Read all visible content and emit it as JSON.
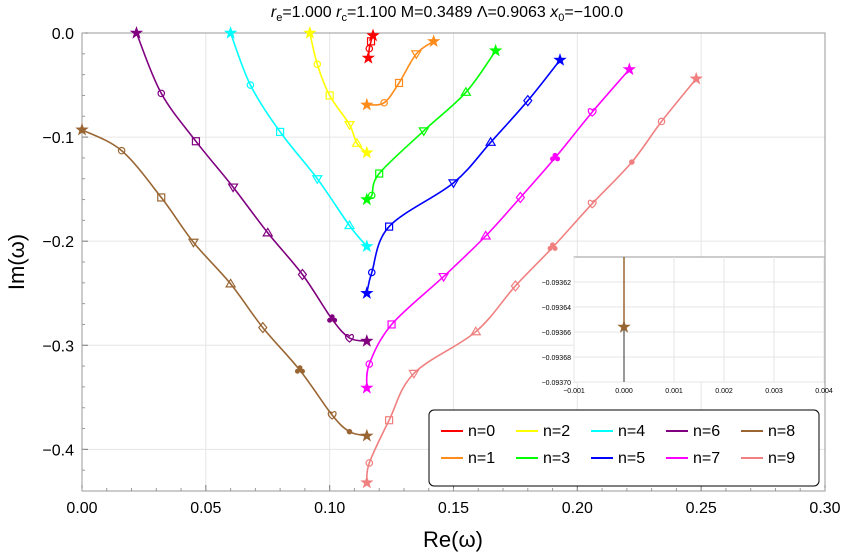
{
  "chart_data": {
    "type": "line",
    "title": "r_e=1.000  r_c=1.100  M=0.3489  Λ=0.9063  x₀=−100.0",
    "title_parts": {
      "re": "=1.000 ",
      "rc": "=1.100 M=0.3489 Λ=0.9063 ",
      "x0": "=−100.0"
    },
    "xlabel": "Re(ω)",
    "ylabel": "Im(ω)",
    "xlim": [
      0.0,
      0.3
    ],
    "ylim": [
      -0.44,
      0.0
    ],
    "xticks": [
      "0.00",
      "0.05",
      "0.10",
      "0.15",
      "0.20",
      "0.25",
      "0.30"
    ],
    "yticks": [
      "0.0",
      "−0.1",
      "−0.2",
      "−0.3",
      "−0.4"
    ],
    "grid": true,
    "legend_position": "bottom-right",
    "series": [
      {
        "name": "n=0",
        "color": "#ff0000",
        "points": [
          [
            0.1156,
            -0.024
          ],
          [
            0.116,
            -0.015
          ],
          [
            0.1167,
            -0.008
          ],
          [
            0.1175,
            -0.0025
          ]
        ]
      },
      {
        "name": "n=1",
        "color": "#ff8c1a",
        "points": [
          [
            0.115,
            -0.069
          ],
          [
            0.122,
            -0.067
          ],
          [
            0.128,
            -0.048
          ],
          [
            0.135,
            -0.02
          ],
          [
            0.142,
            -0.008
          ]
        ]
      },
      {
        "name": "n=2",
        "color": "#ffff00",
        "points": [
          [
            0.092,
            0.0
          ],
          [
            0.095,
            -0.03
          ],
          [
            0.1,
            -0.06
          ],
          [
            0.108,
            -0.088
          ],
          [
            0.111,
            -0.106
          ],
          [
            0.115,
            -0.115
          ]
        ]
      },
      {
        "name": "n=3",
        "color": "#00ff00",
        "points": [
          [
            0.115,
            -0.16
          ],
          [
            0.117,
            -0.156
          ],
          [
            0.12,
            -0.135
          ],
          [
            0.138,
            -0.094
          ],
          [
            0.155,
            -0.057
          ],
          [
            0.167,
            -0.017
          ]
        ]
      },
      {
        "name": "n=4",
        "color": "#00ffff",
        "points": [
          [
            0.06,
            0.0
          ],
          [
            0.068,
            -0.05
          ],
          [
            0.08,
            -0.095
          ],
          [
            0.095,
            -0.14
          ],
          [
            0.108,
            -0.185
          ],
          [
            0.115,
            -0.205
          ]
        ]
      },
      {
        "name": "n=5",
        "color": "#0000ff",
        "points": [
          [
            0.115,
            -0.25
          ],
          [
            0.117,
            -0.23
          ],
          [
            0.124,
            -0.186
          ],
          [
            0.15,
            -0.144
          ],
          [
            0.165,
            -0.105
          ],
          [
            0.18,
            -0.065
          ],
          [
            0.193,
            -0.026
          ]
        ]
      },
      {
        "name": "n=6",
        "color": "#800080",
        "points": [
          [
            0.022,
            0.0
          ],
          [
            0.032,
            -0.058
          ],
          [
            0.046,
            -0.104
          ],
          [
            0.061,
            -0.148
          ],
          [
            0.075,
            -0.192
          ],
          [
            0.089,
            -0.232
          ],
          [
            0.101,
            -0.275
          ],
          [
            0.108,
            -0.293
          ],
          [
            0.115,
            -0.296
          ]
        ]
      },
      {
        "name": "n=7",
        "color": "#ff00ff",
        "points": [
          [
            0.115,
            -0.341
          ],
          [
            0.116,
            -0.318
          ],
          [
            0.125,
            -0.28
          ],
          [
            0.146,
            -0.234
          ],
          [
            0.163,
            -0.195
          ],
          [
            0.177,
            -0.158
          ],
          [
            0.191,
            -0.12
          ],
          [
            0.206,
            -0.076
          ],
          [
            0.221,
            -0.035
          ]
        ]
      },
      {
        "name": "n=8",
        "color": "#996633",
        "points": [
          [
            0.0,
            -0.093
          ],
          [
            0.016,
            -0.113
          ],
          [
            0.032,
            -0.158
          ],
          [
            0.045,
            -0.201
          ],
          [
            0.06,
            -0.241
          ],
          [
            0.073,
            -0.283
          ],
          [
            0.088,
            -0.324
          ],
          [
            0.101,
            -0.367
          ],
          [
            0.108,
            -0.383
          ],
          [
            0.115,
            -0.387
          ]
        ]
      },
      {
        "name": "n=9",
        "color": "#f08080",
        "points": [
          [
            0.115,
            -0.432
          ],
          [
            0.116,
            -0.413
          ],
          [
            0.124,
            -0.372
          ],
          [
            0.134,
            -0.327
          ],
          [
            0.159,
            -0.287
          ],
          [
            0.175,
            -0.243
          ],
          [
            0.19,
            -0.206
          ],
          [
            0.206,
            -0.164
          ],
          [
            0.222,
            -0.124
          ],
          [
            0.234,
            -0.085
          ],
          [
            0.248,
            -0.044
          ]
        ]
      }
    ],
    "inset": {
      "xlim": [
        -0.001,
        0.004
      ],
      "ylim": [
        -0.0937,
        -0.0936
      ],
      "xticks": [
        "−0.001",
        "0.000",
        "0.001",
        "0.002",
        "0.003",
        "0.004"
      ],
      "yticks": [
        "−0.09362",
        "−0.09364",
        "−0.09366",
        "−0.09368",
        "−0.09370"
      ],
      "series_color": "#996633",
      "point": [
        0.0,
        -0.093656
      ]
    }
  }
}
